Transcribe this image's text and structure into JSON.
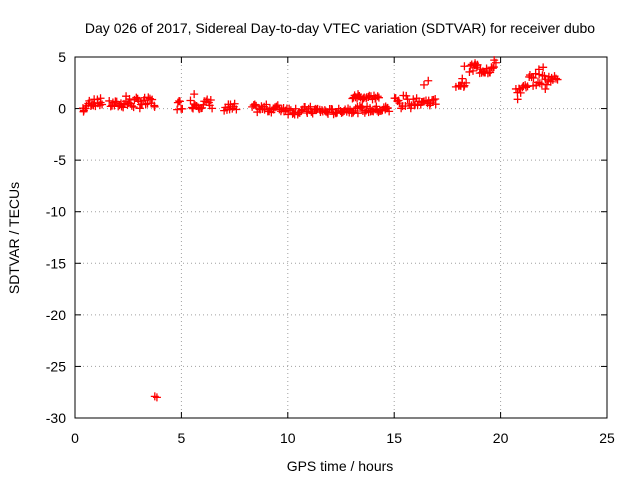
{
  "chart_data": {
    "type": "scatter",
    "title": "Day 026 of 2017, Sidereal Day-to-day VTEC variation (SDTVAR) for receiver dubo",
    "xlabel": "GPS time / hours",
    "ylabel": "SDTVAR / TECUs",
    "xlim": [
      0,
      25
    ],
    "ylim": [
      -30,
      5
    ],
    "xticks": [
      "0",
      "5",
      "10",
      "15",
      "20",
      "25"
    ],
    "yticks": [
      "5",
      "0",
      "-5",
      "-10",
      "-15",
      "-20",
      "-25",
      "-30"
    ],
    "grid": true,
    "marker": "plus",
    "color": "#ff0000",
    "segments": [
      {
        "x0": 0.35,
        "x1": 0.6,
        "yc": 0.0,
        "amp": 0.35
      },
      {
        "x0": 0.6,
        "x1": 1.3,
        "yc": 0.55,
        "amp": 0.35
      },
      {
        "x0": 1.6,
        "x1": 2.3,
        "yc": 0.4,
        "amp": 0.35
      },
      {
        "x0": 2.3,
        "x1": 3.8,
        "yc": 0.55,
        "amp": 0.55
      },
      {
        "x0": 4.8,
        "x1": 5.1,
        "yc": 0.4,
        "amp": 0.45
      },
      {
        "x0": 5.4,
        "x1": 6.5,
        "yc": 0.45,
        "amp": 0.5
      },
      {
        "x0": 7.0,
        "x1": 7.6,
        "yc": 0.0,
        "amp": 0.5
      },
      {
        "x0": 8.3,
        "x1": 10.0,
        "yc": 0.0,
        "amp": 0.4
      },
      {
        "x0": 10.0,
        "x1": 11.7,
        "yc": -0.2,
        "amp": 0.4
      },
      {
        "x0": 11.7,
        "x1": 12.5,
        "yc": -0.3,
        "amp": 0.3
      },
      {
        "x0": 12.5,
        "x1": 14.8,
        "yc": -0.1,
        "amp": 0.35
      },
      {
        "x0": 13.0,
        "x1": 14.3,
        "yc": 1.1,
        "amp": 0.25
      },
      {
        "x0": 15.0,
        "x1": 15.8,
        "yc": 0.6,
        "amp": 0.7
      },
      {
        "x0": 15.8,
        "x1": 17.0,
        "yc": 0.65,
        "amp": 0.35
      },
      {
        "x0": 18.0,
        "x1": 18.4,
        "yc": 2.3,
        "amp": 0.2
      },
      {
        "x0": 18.5,
        "x1": 19.8,
        "yc": 3.9,
        "amp": 0.6
      },
      {
        "x0": 20.7,
        "x1": 21.3,
        "yc": 1.9,
        "amp": 0.5
      },
      {
        "x0": 21.3,
        "x1": 22.2,
        "yc": 2.8,
        "amp": 0.6
      },
      {
        "x0": 22.2,
        "x1": 22.7,
        "yc": 2.9,
        "amp": 0.3
      }
    ],
    "points": [
      {
        "x": 0.4,
        "y": -0.3
      },
      {
        "x": 0.9,
        "y": 0.9
      },
      {
        "x": 1.2,
        "y": 1.0
      },
      {
        "x": 2.4,
        "y": 1.2
      },
      {
        "x": 4.8,
        "y": -0.1
      },
      {
        "x": 5.6,
        "y": 1.4
      },
      {
        "x": 13.3,
        "y": 1.4
      },
      {
        "x": 14.6,
        "y": 0.2
      },
      {
        "x": 16.4,
        "y": 2.3
      },
      {
        "x": 16.6,
        "y": 2.7
      },
      {
        "x": 18.2,
        "y": 2.9
      },
      {
        "x": 18.3,
        "y": 4.1
      },
      {
        "x": 18.8,
        "y": 4.4
      },
      {
        "x": 19.7,
        "y": 4.7
      },
      {
        "x": 17.9,
        "y": 2.1
      },
      {
        "x": 20.8,
        "y": 0.9
      },
      {
        "x": 21.8,
        "y": 3.8
      },
      {
        "x": 22.0,
        "y": 4.0
      },
      {
        "x": 22.1,
        "y": 1.9
      },
      {
        "x": 3.75,
        "y": -27.9
      },
      {
        "x": 3.85,
        "y": -28.0
      }
    ]
  }
}
